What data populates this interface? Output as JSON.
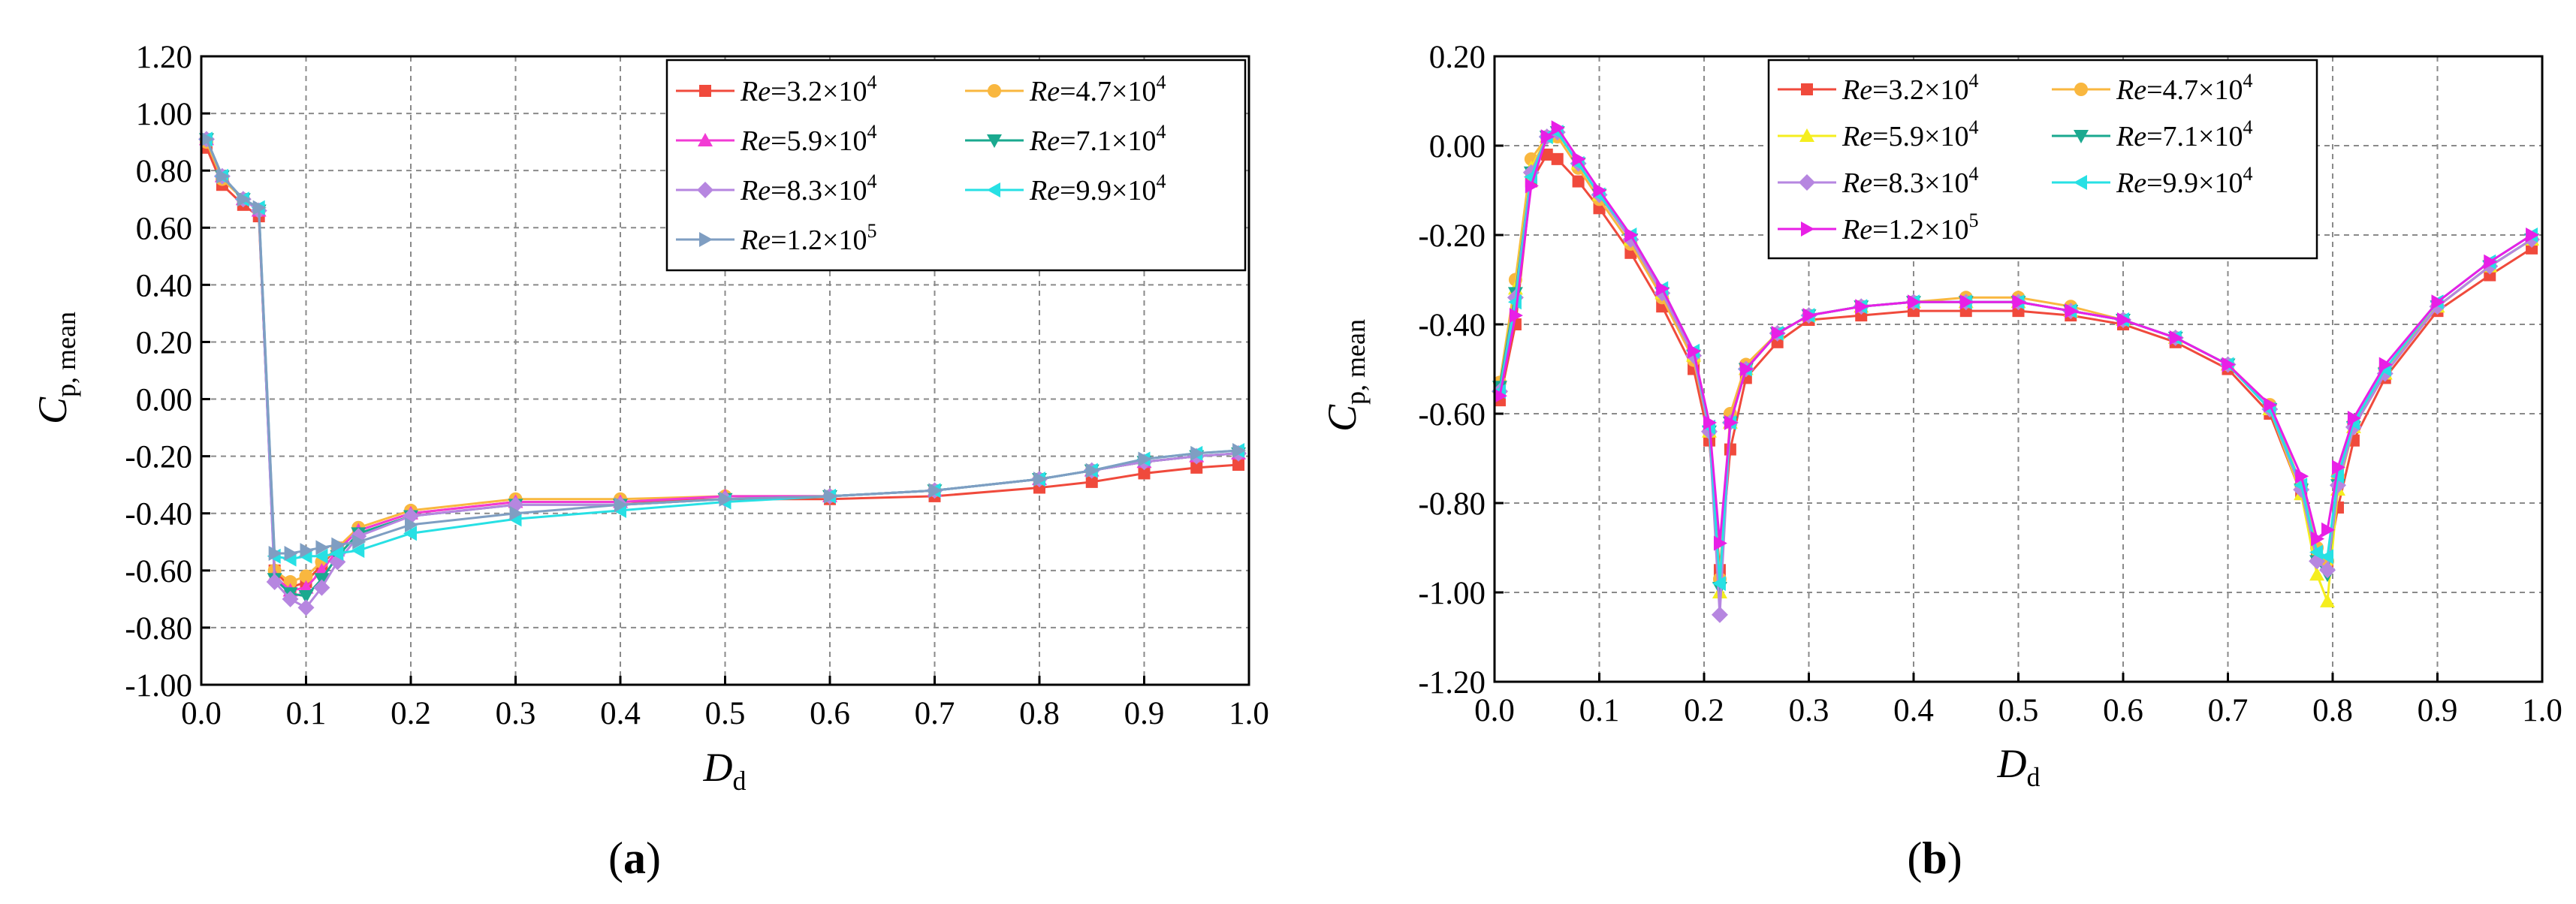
{
  "chart_data": [
    {
      "id": "a",
      "panel_label": "a",
      "type": "line",
      "xlabel": {
        "symbol": "D",
        "sub": "d"
      },
      "ylabel": {
        "symbol": "C",
        "sub": "p, mean"
      },
      "xlim": [
        0.0,
        1.0
      ],
      "ylim": [
        -1.0,
        1.2
      ],
      "xticks": [
        "0.0",
        "0.1",
        "0.2",
        "0.3",
        "0.4",
        "0.5",
        "0.6",
        "0.7",
        "0.8",
        "0.9",
        "1.0"
      ],
      "yticks": [
        "1.20",
        "1.00",
        "0.80",
        "0.60",
        "0.40",
        "0.20",
        "0.00",
        "-0.20",
        "-0.40",
        "-0.60",
        "-0.80",
        "-1.00"
      ],
      "legend": {
        "placement": "top-right",
        "columns": 2
      },
      "series": [
        {
          "name": "Re=3.2×10^4",
          "re": "Re",
          "mant": "=3.2×10",
          "exp": "4",
          "color": "#f04a3c",
          "marker": "square",
          "x": [
            0.005,
            0.02,
            0.04,
            0.055,
            0.07,
            0.085,
            0.1,
            0.115,
            0.13,
            0.15,
            0.2,
            0.3,
            0.4,
            0.5,
            0.6,
            0.7,
            0.8,
            0.85,
            0.9,
            0.95,
            0.99
          ],
          "y": [
            0.88,
            0.75,
            0.68,
            0.64,
            -0.6,
            -0.66,
            -0.64,
            -0.58,
            -0.52,
            -0.46,
            -0.4,
            -0.36,
            -0.36,
            -0.35,
            -0.35,
            -0.34,
            -0.31,
            -0.29,
            -0.26,
            -0.24,
            -0.23
          ]
        },
        {
          "name": "Re=4.7×10^4",
          "re": "Re",
          "mant": "=4.7×10",
          "exp": "4",
          "color": "#f9b73f",
          "marker": "circle",
          "x": [
            0.005,
            0.02,
            0.04,
            0.055,
            0.07,
            0.085,
            0.1,
            0.115,
            0.13,
            0.15,
            0.2,
            0.3,
            0.4,
            0.5,
            0.6,
            0.7,
            0.8,
            0.85,
            0.9,
            0.95,
            0.99
          ],
          "y": [
            0.9,
            0.77,
            0.7,
            0.66,
            -0.6,
            -0.64,
            -0.62,
            -0.57,
            -0.52,
            -0.45,
            -0.39,
            -0.35,
            -0.35,
            -0.34,
            -0.34,
            -0.32,
            -0.28,
            -0.25,
            -0.22,
            -0.2,
            -0.19
          ]
        },
        {
          "name": "Re=5.9×10^4",
          "re": "Re",
          "mant": "=5.9×10",
          "exp": "4",
          "color": "#f23bd4",
          "marker": "triangle-up",
          "x": [
            0.005,
            0.02,
            0.04,
            0.055,
            0.07,
            0.085,
            0.1,
            0.115,
            0.13,
            0.15,
            0.2,
            0.3,
            0.4,
            0.5,
            0.6,
            0.7,
            0.8,
            0.85,
            0.9,
            0.95,
            0.99
          ],
          "y": [
            0.91,
            0.78,
            0.7,
            0.66,
            -0.62,
            -0.67,
            -0.66,
            -0.6,
            -0.53,
            -0.46,
            -0.4,
            -0.36,
            -0.36,
            -0.34,
            -0.34,
            -0.32,
            -0.28,
            -0.25,
            -0.22,
            -0.2,
            -0.19
          ]
        },
        {
          "name": "Re=7.1×10^4",
          "re": "Re",
          "mant": "=7.1×10",
          "exp": "4",
          "color": "#1aa98f",
          "marker": "triangle-down",
          "x": [
            0.005,
            0.02,
            0.04,
            0.055,
            0.07,
            0.085,
            0.1,
            0.115,
            0.13,
            0.15,
            0.2,
            0.3,
            0.4,
            0.5,
            0.6,
            0.7,
            0.8,
            0.85,
            0.9,
            0.95,
            0.99
          ],
          "y": [
            0.91,
            0.78,
            0.7,
            0.66,
            -0.63,
            -0.68,
            -0.69,
            -0.63,
            -0.55,
            -0.47,
            -0.41,
            -0.37,
            -0.37,
            -0.35,
            -0.34,
            -0.32,
            -0.28,
            -0.25,
            -0.22,
            -0.2,
            -0.19
          ]
        },
        {
          "name": "Re=8.3×10^4",
          "re": "Re",
          "mant": "=8.3×10",
          "exp": "4",
          "color": "#b686e0",
          "marker": "diamond",
          "x": [
            0.005,
            0.02,
            0.04,
            0.055,
            0.07,
            0.085,
            0.1,
            0.115,
            0.13,
            0.15,
            0.2,
            0.3,
            0.4,
            0.5,
            0.6,
            0.7,
            0.8,
            0.85,
            0.9,
            0.95,
            0.99
          ],
          "y": [
            0.91,
            0.78,
            0.7,
            0.66,
            -0.64,
            -0.7,
            -0.73,
            -0.66,
            -0.57,
            -0.48,
            -0.41,
            -0.37,
            -0.37,
            -0.35,
            -0.34,
            -0.32,
            -0.28,
            -0.25,
            -0.22,
            -0.2,
            -0.19
          ]
        },
        {
          "name": "Re=9.9×10^4",
          "re": "Re",
          "mant": "=9.9×10",
          "exp": "4",
          "color": "#27e0e4",
          "marker": "triangle-left",
          "x": [
            0.005,
            0.02,
            0.04,
            0.055,
            0.07,
            0.085,
            0.1,
            0.115,
            0.13,
            0.15,
            0.2,
            0.3,
            0.4,
            0.5,
            0.6,
            0.7,
            0.8,
            0.85,
            0.9,
            0.95,
            0.99
          ],
          "y": [
            0.91,
            0.78,
            0.7,
            0.67,
            -0.55,
            -0.56,
            -0.55,
            -0.55,
            -0.54,
            -0.53,
            -0.47,
            -0.42,
            -0.39,
            -0.36,
            -0.34,
            -0.32,
            -0.28,
            -0.25,
            -0.21,
            -0.19,
            -0.18
          ]
        },
        {
          "name": "Re=1.2×10^5",
          "re": "Re",
          "mant": "=1.2×10",
          "exp": "5",
          "color": "#7f9ec2",
          "marker": "triangle-right",
          "x": [
            0.005,
            0.02,
            0.04,
            0.055,
            0.07,
            0.085,
            0.1,
            0.115,
            0.13,
            0.15,
            0.2,
            0.3,
            0.4,
            0.5,
            0.6,
            0.7,
            0.8,
            0.85,
            0.9,
            0.95,
            0.99
          ],
          "y": [
            0.91,
            0.78,
            0.7,
            0.67,
            -0.54,
            -0.54,
            -0.53,
            -0.52,
            -0.51,
            -0.5,
            -0.44,
            -0.4,
            -0.37,
            -0.35,
            -0.34,
            -0.32,
            -0.28,
            -0.25,
            -0.21,
            -0.19,
            -0.18
          ]
        }
      ]
    },
    {
      "id": "b",
      "panel_label": "b",
      "type": "line",
      "xlabel": {
        "symbol": "D",
        "sub": "d"
      },
      "ylabel": {
        "symbol": "C",
        "sub": "p, mean"
      },
      "xlim": [
        0.0,
        1.0
      ],
      "ylim": [
        -1.2,
        0.2
      ],
      "xticks": [
        "0.0",
        "0.1",
        "0.2",
        "0.3",
        "0.4",
        "0.5",
        "0.6",
        "0.7",
        "0.8",
        "0.9",
        "1.0"
      ],
      "yticks": [
        "0.20",
        "0.00",
        "-0.20",
        "-0.40",
        "-0.60",
        "-0.80",
        "-1.00",
        "-1.20"
      ],
      "legend": {
        "placement": "top-left",
        "columns": 2
      },
      "series": [
        {
          "name": "Re=3.2×10^4",
          "re": "Re",
          "mant": "=3.2×10",
          "exp": "4",
          "color": "#f04a3c",
          "marker": "square",
          "x": [
            0.005,
            0.02,
            0.035,
            0.05,
            0.06,
            0.08,
            0.1,
            0.13,
            0.16,
            0.19,
            0.205,
            0.215,
            0.225,
            0.24,
            0.27,
            0.3,
            0.35,
            0.4,
            0.45,
            0.5,
            0.55,
            0.6,
            0.65,
            0.7,
            0.74,
            0.77,
            0.785,
            0.795,
            0.805,
            0.82,
            0.85,
            0.9,
            0.95,
            0.99
          ],
          "y": [
            -0.57,
            -0.4,
            -0.08,
            -0.02,
            -0.03,
            -0.08,
            -0.14,
            -0.24,
            -0.36,
            -0.5,
            -0.66,
            -0.95,
            -0.68,
            -0.52,
            -0.44,
            -0.39,
            -0.38,
            -0.37,
            -0.37,
            -0.37,
            -0.38,
            -0.4,
            -0.44,
            -0.5,
            -0.6,
            -0.78,
            -0.92,
            -0.94,
            -0.81,
            -0.66,
            -0.52,
            -0.37,
            -0.29,
            -0.23
          ]
        },
        {
          "name": "Re=4.7×10^4",
          "re": "Re",
          "mant": "=4.7×10",
          "exp": "4",
          "color": "#f9b73f",
          "marker": "circle",
          "x": [
            0.005,
            0.02,
            0.035,
            0.05,
            0.06,
            0.08,
            0.1,
            0.13,
            0.16,
            0.19,
            0.205,
            0.215,
            0.225,
            0.24,
            0.27,
            0.3,
            0.35,
            0.4,
            0.45,
            0.5,
            0.55,
            0.6,
            0.65,
            0.7,
            0.74,
            0.77,
            0.785,
            0.795,
            0.805,
            0.82,
            0.85,
            0.9,
            0.95,
            0.99
          ],
          "y": [
            -0.53,
            -0.3,
            -0.03,
            0.02,
            0.02,
            -0.05,
            -0.12,
            -0.22,
            -0.34,
            -0.48,
            -0.64,
            -0.97,
            -0.6,
            -0.49,
            -0.42,
            -0.38,
            -0.36,
            -0.35,
            -0.34,
            -0.34,
            -0.36,
            -0.39,
            -0.43,
            -0.49,
            -0.58,
            -0.76,
            -0.9,
            -0.93,
            -0.74,
            -0.62,
            -0.5,
            -0.36,
            -0.27,
            -0.21
          ]
        },
        {
          "name": "Re=5.9×10^4",
          "re": "Re",
          "mant": "=5.9×10",
          "exp": "4",
          "color": "#f5ee1e",
          "marker": "triangle-up",
          "x": [
            0.005,
            0.02,
            0.035,
            0.05,
            0.06,
            0.08,
            0.1,
            0.13,
            0.16,
            0.19,
            0.205,
            0.215,
            0.225,
            0.24,
            0.27,
            0.3,
            0.35,
            0.4,
            0.45,
            0.5,
            0.55,
            0.6,
            0.65,
            0.7,
            0.74,
            0.77,
            0.785,
            0.795,
            0.805,
            0.82,
            0.85,
            0.9,
            0.95,
            0.99
          ],
          "y": [
            -0.54,
            -0.32,
            -0.05,
            0.02,
            0.03,
            -0.04,
            -0.11,
            -0.21,
            -0.33,
            -0.47,
            -0.64,
            -1.0,
            -0.62,
            -0.5,
            -0.42,
            -0.38,
            -0.36,
            -0.35,
            -0.35,
            -0.35,
            -0.37,
            -0.39,
            -0.43,
            -0.49,
            -0.59,
            -0.78,
            -0.96,
            -1.02,
            -0.77,
            -0.63,
            -0.51,
            -0.36,
            -0.27,
            -0.21
          ]
        },
        {
          "name": "Re=7.1×10^4",
          "re": "Re",
          "mant": "=7.1×10",
          "exp": "4",
          "color": "#1aa98f",
          "marker": "triangle-down",
          "x": [
            0.005,
            0.02,
            0.035,
            0.05,
            0.06,
            0.08,
            0.1,
            0.13,
            0.16,
            0.19,
            0.205,
            0.215,
            0.225,
            0.24,
            0.27,
            0.3,
            0.35,
            0.4,
            0.45,
            0.5,
            0.55,
            0.6,
            0.65,
            0.7,
            0.74,
            0.77,
            0.785,
            0.795,
            0.805,
            0.82,
            0.85,
            0.9,
            0.95,
            0.99
          ],
          "y": [
            -0.54,
            -0.33,
            -0.06,
            0.02,
            0.03,
            -0.04,
            -0.11,
            -0.21,
            -0.33,
            -0.47,
            -0.64,
            -0.99,
            -0.62,
            -0.5,
            -0.42,
            -0.38,
            -0.36,
            -0.35,
            -0.35,
            -0.35,
            -0.37,
            -0.39,
            -0.43,
            -0.49,
            -0.59,
            -0.77,
            -0.93,
            -0.96,
            -0.76,
            -0.63,
            -0.51,
            -0.36,
            -0.27,
            -0.21
          ]
        },
        {
          "name": "Re=8.3×10^4",
          "re": "Re",
          "mant": "=8.3×10",
          "exp": "4",
          "color": "#b686e0",
          "marker": "diamond",
          "x": [
            0.005,
            0.02,
            0.035,
            0.05,
            0.06,
            0.08,
            0.1,
            0.13,
            0.16,
            0.19,
            0.205,
            0.215,
            0.225,
            0.24,
            0.27,
            0.3,
            0.35,
            0.4,
            0.45,
            0.5,
            0.55,
            0.6,
            0.65,
            0.7,
            0.74,
            0.77,
            0.785,
            0.795,
            0.805,
            0.82,
            0.85,
            0.9,
            0.95,
            0.99
          ],
          "y": [
            -0.55,
            -0.34,
            -0.06,
            0.02,
            0.03,
            -0.04,
            -0.11,
            -0.21,
            -0.33,
            -0.47,
            -0.64,
            -1.05,
            -0.62,
            -0.5,
            -0.42,
            -0.38,
            -0.36,
            -0.35,
            -0.35,
            -0.35,
            -0.37,
            -0.39,
            -0.43,
            -0.49,
            -0.59,
            -0.77,
            -0.93,
            -0.95,
            -0.76,
            -0.63,
            -0.51,
            -0.36,
            -0.27,
            -0.21
          ]
        },
        {
          "name": "Re=9.9×10^4",
          "re": "Re",
          "mant": "=9.9×10",
          "exp": "4",
          "color": "#27e0e4",
          "marker": "triangle-left",
          "x": [
            0.005,
            0.02,
            0.035,
            0.05,
            0.06,
            0.08,
            0.1,
            0.13,
            0.16,
            0.19,
            0.205,
            0.215,
            0.225,
            0.24,
            0.27,
            0.3,
            0.35,
            0.4,
            0.45,
            0.5,
            0.55,
            0.6,
            0.65,
            0.7,
            0.74,
            0.77,
            0.785,
            0.795,
            0.805,
            0.82,
            0.85,
            0.9,
            0.95,
            0.99
          ],
          "y": [
            -0.55,
            -0.35,
            -0.07,
            0.02,
            0.03,
            -0.04,
            -0.11,
            -0.2,
            -0.32,
            -0.46,
            -0.63,
            -0.98,
            -0.62,
            -0.5,
            -0.42,
            -0.38,
            -0.36,
            -0.35,
            -0.35,
            -0.35,
            -0.37,
            -0.39,
            -0.43,
            -0.49,
            -0.59,
            -0.76,
            -0.91,
            -0.92,
            -0.74,
            -0.62,
            -0.5,
            -0.35,
            -0.26,
            -0.2
          ]
        },
        {
          "name": "Re=1.2×10^5",
          "re": "Re",
          "mant": "=1.2×10",
          "exp": "5",
          "color": "#e81fe6",
          "marker": "triangle-right",
          "x": [
            0.005,
            0.02,
            0.035,
            0.05,
            0.06,
            0.08,
            0.1,
            0.13,
            0.16,
            0.19,
            0.205,
            0.215,
            0.225,
            0.24,
            0.27,
            0.3,
            0.35,
            0.4,
            0.45,
            0.5,
            0.55,
            0.6,
            0.65,
            0.7,
            0.74,
            0.77,
            0.785,
            0.795,
            0.805,
            0.82,
            0.85,
            0.9,
            0.95,
            0.99
          ],
          "y": [
            -0.56,
            -0.38,
            -0.09,
            0.02,
            0.04,
            -0.03,
            -0.1,
            -0.2,
            -0.32,
            -0.46,
            -0.62,
            -0.89,
            -0.62,
            -0.5,
            -0.42,
            -0.38,
            -0.36,
            -0.35,
            -0.35,
            -0.35,
            -0.37,
            -0.39,
            -0.43,
            -0.49,
            -0.58,
            -0.74,
            -0.88,
            -0.86,
            -0.72,
            -0.61,
            -0.49,
            -0.35,
            -0.26,
            -0.2
          ]
        }
      ]
    }
  ]
}
